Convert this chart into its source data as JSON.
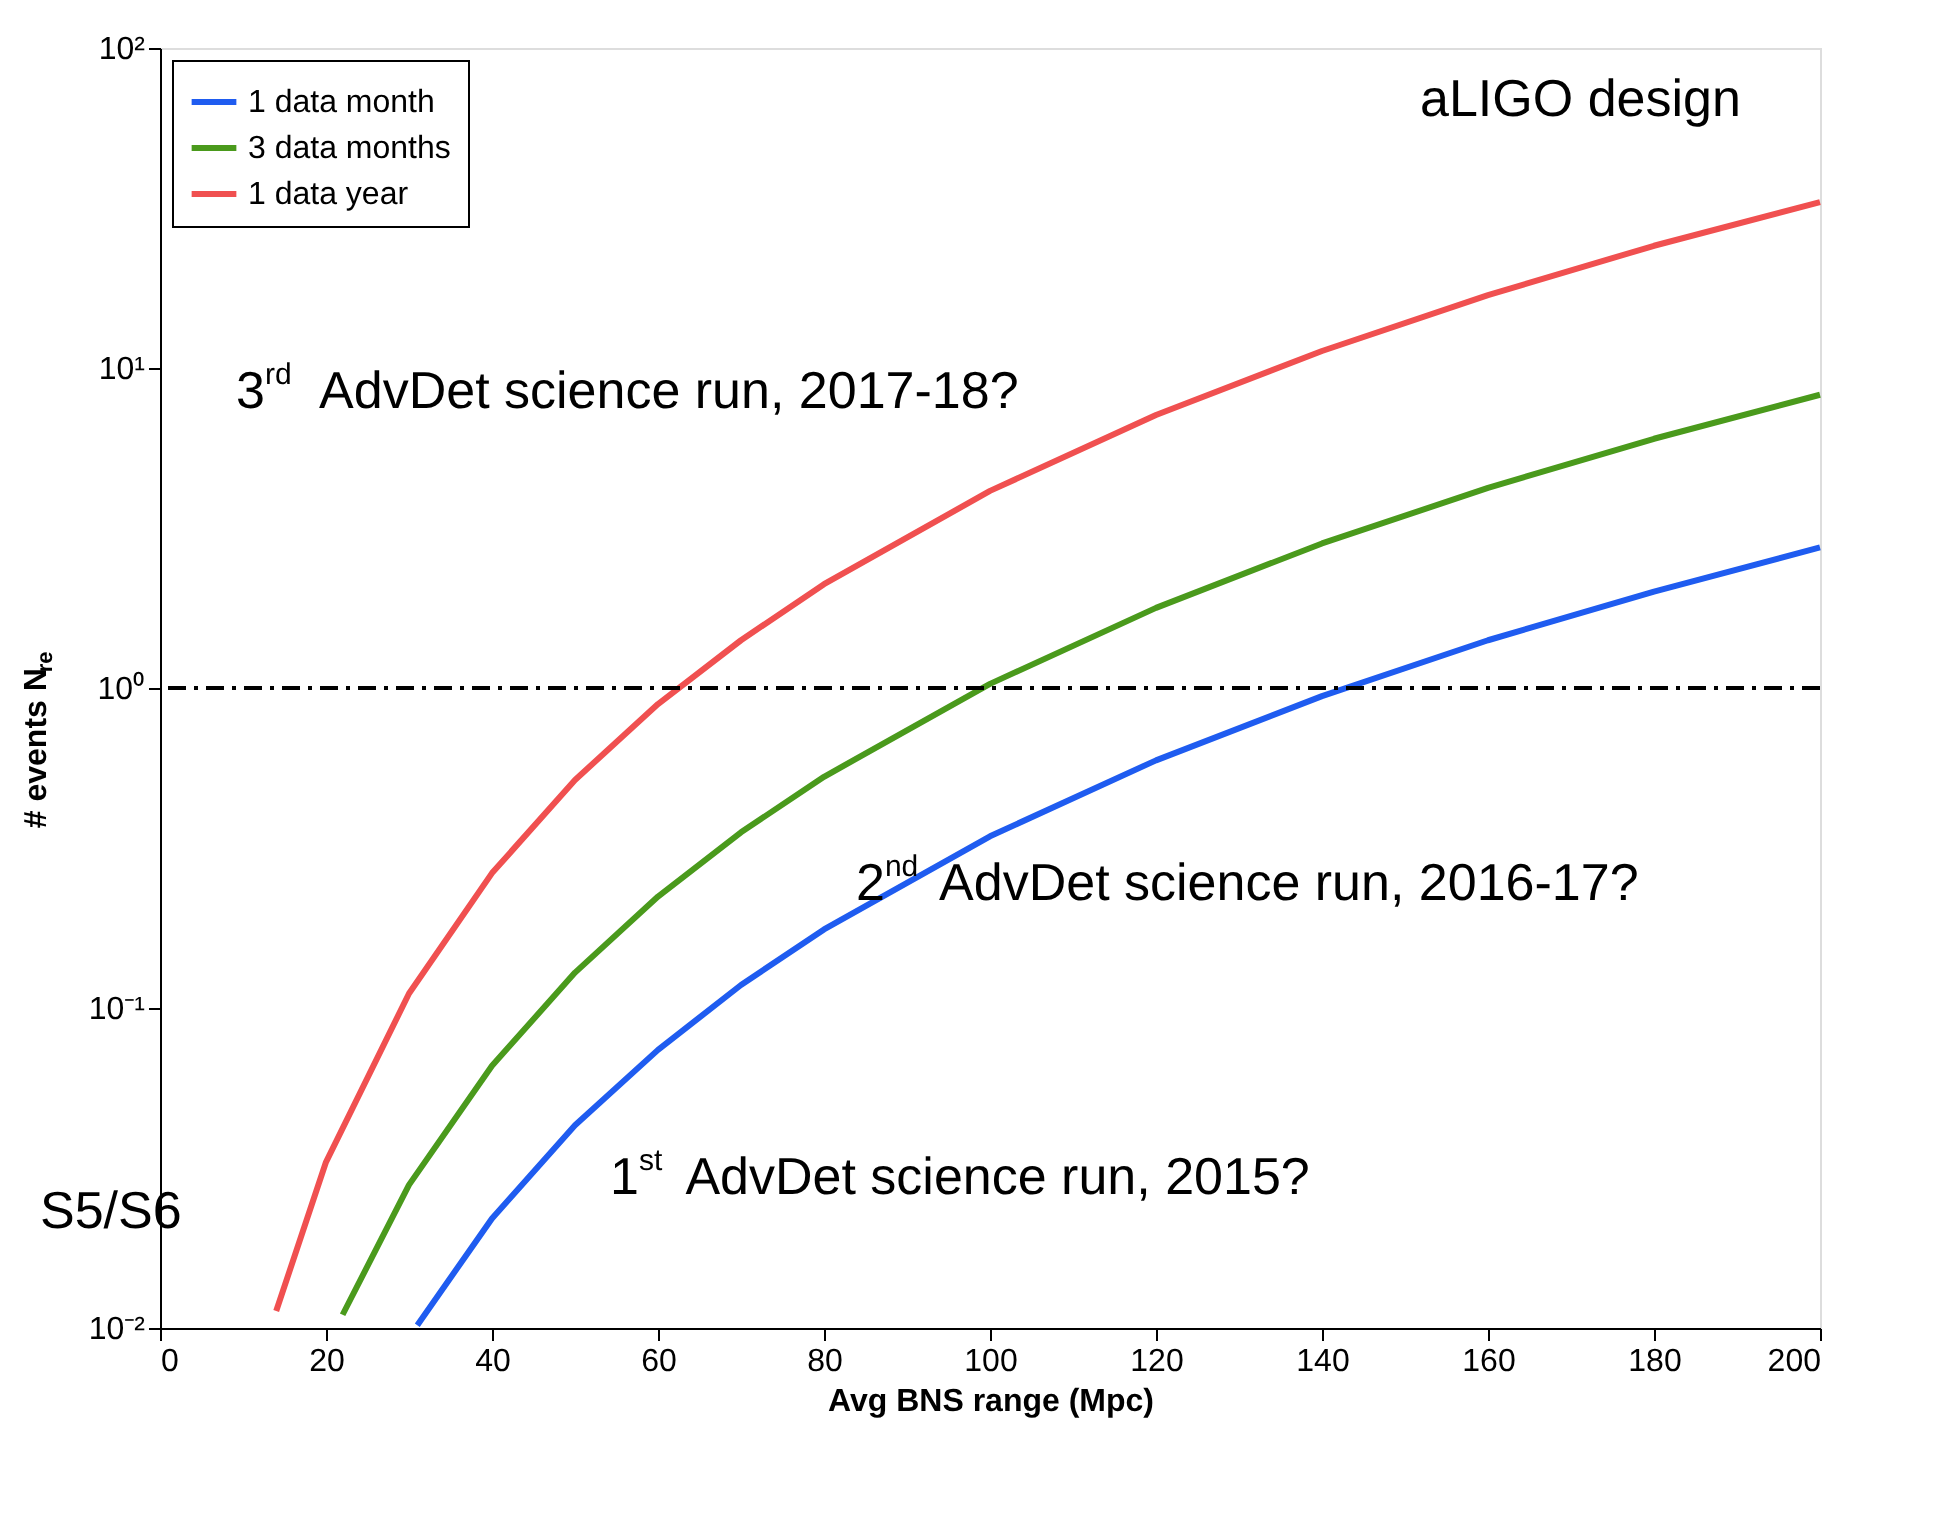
{
  "chart_data": {
    "type": "line",
    "xlabel": "Avg BNS range (Mpc)",
    "ylabel": "# events N$_{re}$",
    "log": "y",
    "xlim": [
      0,
      200
    ],
    "xticks": [
      0,
      20,
      40,
      60,
      80,
      100,
      120,
      140,
      160,
      180,
      200
    ],
    "ylim": [
      0.01,
      100
    ],
    "yticks": [
      {
        "value": 0.01,
        "label": "10⁻²"
      },
      {
        "value": 0.1,
        "label": "10⁻¹"
      },
      {
        "value": 1,
        "label": "10⁰"
      },
      {
        "value": 10,
        "label": "10¹"
      },
      {
        "value": 100,
        "label": "10²"
      }
    ],
    "grid": false,
    "legend": "top left",
    "marker": "none",
    "line_style": "solid",
    "series": [
      {
        "name": "1 data month",
        "color": "#1f5cf0",
        "x": [
          31,
          40,
          50,
          60,
          70,
          80,
          100,
          120,
          140,
          160,
          180,
          200
        ],
        "values": [
          0.0102,
          0.022,
          0.043,
          0.074,
          0.118,
          0.176,
          0.344,
          0.594,
          0.943,
          1.41,
          2.0,
          2.75
        ]
      },
      {
        "name": "3 data months",
        "color": "#4a9a1c",
        "x": [
          22,
          30,
          40,
          50,
          60,
          70,
          80,
          100,
          120,
          140,
          160,
          180,
          200
        ],
        "values": [
          0.011,
          0.028,
          0.066,
          0.129,
          0.223,
          0.354,
          0.528,
          1.03,
          1.78,
          2.83,
          4.22,
          6.01,
          8.25
        ]
      },
      {
        "name": "1 data year",
        "color": "#f05050",
        "x": [
          14,
          20,
          30,
          40,
          50,
          60,
          70,
          80,
          100,
          120,
          140,
          160,
          180,
          200
        ],
        "values": [
          0.0113,
          0.033,
          0.111,
          0.264,
          0.516,
          0.891,
          1.41,
          2.11,
          4.13,
          7.13,
          11.3,
          16.9,
          24.1,
          33
        ]
      }
    ],
    "ref_lines": [
      {
        "axis": "y",
        "value": 1,
        "color": "#000000",
        "line_style": "dashdot"
      }
    ],
    "annotations": [
      "aLIGO design",
      "3$^{rd}$ AdvDet science run, 2017-18?",
      "2$^{nd}$ AdvDet science run, 2016-17?",
      "1$^{st}$ AdvDet science run, 2015?",
      "S5/S6"
    ]
  }
}
